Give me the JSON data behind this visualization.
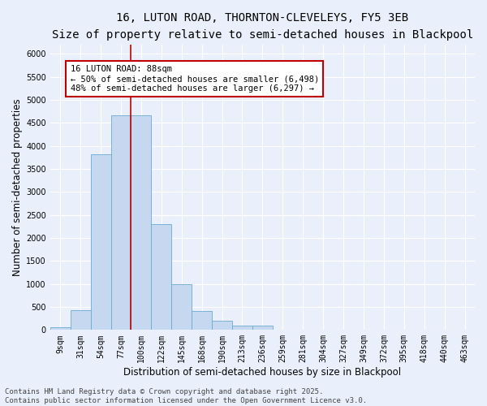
{
  "title1": "16, LUTON ROAD, THORNTON-CLEVELEYS, FY5 3EB",
  "title2": "Size of property relative to semi-detached houses in Blackpool",
  "xlabel": "Distribution of semi-detached houses by size in Blackpool",
  "ylabel": "Number of semi-detached properties",
  "categories": [
    "9sqm",
    "31sqm",
    "54sqm",
    "77sqm",
    "100sqm",
    "122sqm",
    "145sqm",
    "168sqm",
    "190sqm",
    "213sqm",
    "236sqm",
    "259sqm",
    "281sqm",
    "304sqm",
    "327sqm",
    "349sqm",
    "372sqm",
    "395sqm",
    "418sqm",
    "440sqm",
    "463sqm"
  ],
  "values": [
    50,
    430,
    3820,
    4670,
    4670,
    2300,
    1000,
    410,
    200,
    100,
    100,
    0,
    0,
    0,
    0,
    0,
    0,
    0,
    0,
    0,
    0
  ],
  "bar_color": "#c5d8f0",
  "bar_edge_color": "#6aabd2",
  "vline_x": 3.5,
  "vline_color": "#c00000",
  "annotation_title": "16 LUTON ROAD: 88sqm",
  "annotation_line1": "← 50% of semi-detached houses are smaller (6,498)",
  "annotation_line2": "48% of semi-detached houses are larger (6,297) →",
  "annotation_box_color": "#ffffff",
  "annotation_edge_color": "#c00000",
  "ylim": [
    0,
    6200
  ],
  "yticks": [
    0,
    500,
    1000,
    1500,
    2000,
    2500,
    3000,
    3500,
    4000,
    4500,
    5000,
    5500,
    6000
  ],
  "footer": "Contains HM Land Registry data © Crown copyright and database right 2025.\nContains public sector information licensed under the Open Government Licence v3.0.",
  "bg_color": "#eaf0fb",
  "grid_color": "#ffffff",
  "title_fontsize": 10,
  "subtitle_fontsize": 9,
  "axis_label_fontsize": 8.5,
  "tick_fontsize": 7,
  "annot_fontsize": 7.5,
  "footer_fontsize": 6.5
}
